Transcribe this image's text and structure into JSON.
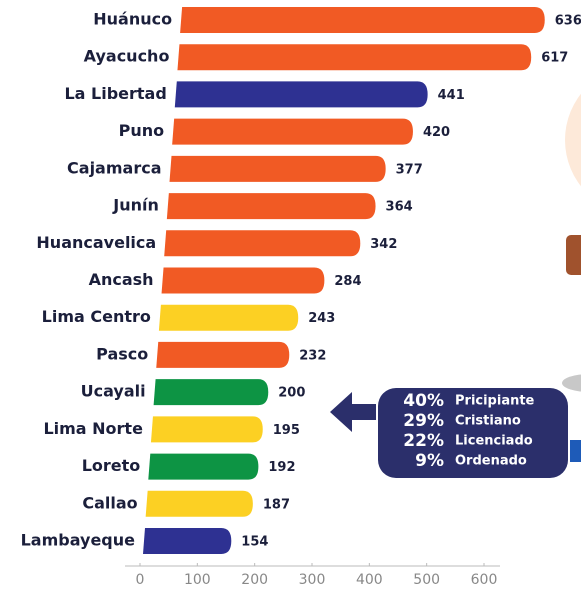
{
  "chart_data": {
    "type": "bar",
    "orientation": "horizontal",
    "categories": [
      "Huánuco",
      "Ayacucho",
      "La Libertad",
      "Puno",
      "Cajamarca",
      "Junín",
      "Huancavelica",
      "Ancash",
      "Lima Centro",
      "Pasco",
      "Ucayali",
      "Lima Norte",
      "Loreto",
      "Callao",
      "Lambayeque"
    ],
    "values": [
      636,
      617,
      441,
      420,
      377,
      364,
      342,
      284,
      243,
      232,
      200,
      195,
      192,
      187,
      154
    ],
    "colors": [
      "#f15a24",
      "#f15a24",
      "#2e3192",
      "#f15a24",
      "#f15a24",
      "#f15a24",
      "#f15a24",
      "#f15a24",
      "#fcd023",
      "#f15a24",
      "#0d9444",
      "#fcd023",
      "#0d9444",
      "#fcd023",
      "#2e3192"
    ],
    "xlim": [
      0,
      600
    ],
    "xticks": [
      0,
      100,
      200,
      300,
      400,
      500,
      600
    ],
    "annotations": [
      {
        "value": 40,
        "label": "40%",
        "text": "Pricipiante"
      },
      {
        "value": 29,
        "label": "29%",
        "text": "Cristiano"
      },
      {
        "value": 22,
        "label": "22%",
        "text": "Licenciado"
      },
      {
        "value": 9,
        "label": "9%",
        "text": "Ordenado"
      }
    ]
  }
}
